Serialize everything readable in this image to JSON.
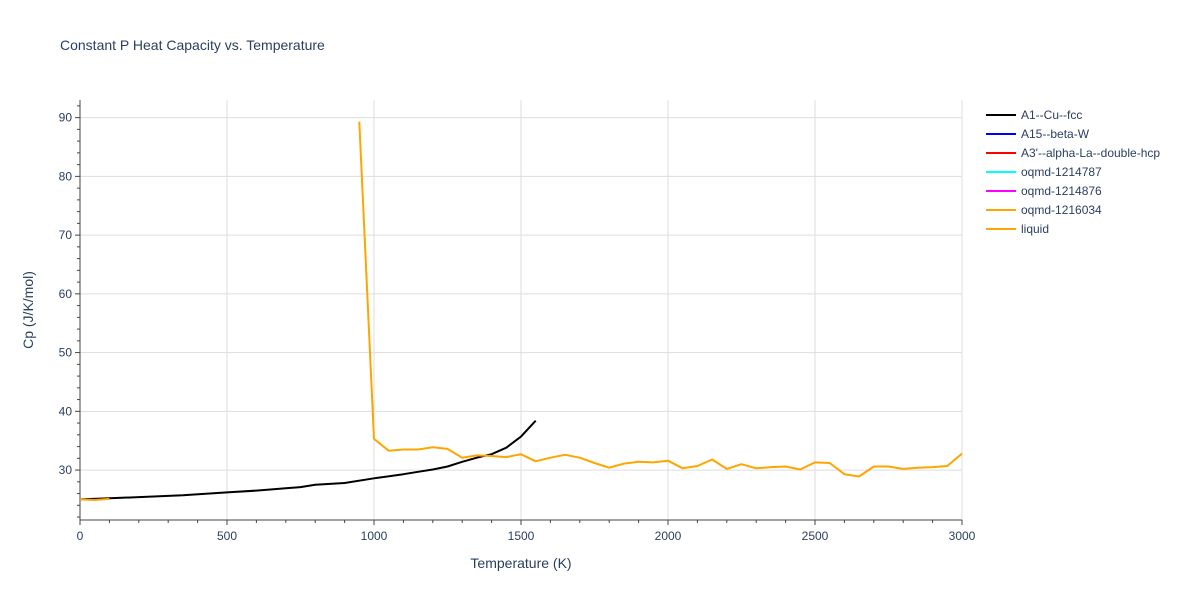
{
  "chart_data": {
    "type": "line",
    "title": "Constant P Heat Capacity vs. Temperature",
    "xlabel": "Temperature (K)",
    "ylabel": "Cp (J/K/mol)",
    "xlim": [
      0,
      3000
    ],
    "ylim": [
      21.5,
      93
    ],
    "xticks": [
      0,
      500,
      1000,
      1500,
      2000,
      2500,
      3000
    ],
    "xtick_labels": [
      "0",
      "500",
      "1000",
      "1500",
      "2000",
      "2500",
      "3000"
    ],
    "yticks": [
      30,
      40,
      50,
      60,
      70,
      80,
      90
    ],
    "ytick_labels": [
      "30",
      "40",
      "50",
      "60",
      "70",
      "80",
      "90"
    ],
    "grid": true,
    "legend_position": "right",
    "series": [
      {
        "name": "A1--Cu--fcc",
        "color": "#000000",
        "x": [
          0,
          100,
          200,
          350,
          500,
          600,
          700,
          750,
          800,
          900,
          1000,
          1100,
          1150,
          1200,
          1250,
          1300,
          1350,
          1400,
          1450,
          1500,
          1550
        ],
        "y": [
          25.0,
          25.2,
          25.4,
          25.7,
          26.2,
          26.5,
          26.9,
          27.1,
          27.5,
          27.8,
          28.6,
          29.3,
          29.7,
          30.1,
          30.6,
          31.4,
          32.1,
          32.7,
          33.8,
          35.7,
          38.4
        ]
      },
      {
        "name": "A15--beta-W",
        "color": "#0000ff",
        "x": [],
        "y": []
      },
      {
        "name": "A3'--alpha-La--double-hcp",
        "color": "#ff0000",
        "x": [],
        "y": []
      },
      {
        "name": "oqmd-1214787",
        "color": "#00ffff",
        "x": [],
        "y": []
      },
      {
        "name": "oqmd-1214876",
        "color": "#ff00ff",
        "x": [],
        "y": []
      },
      {
        "name": "oqmd-1216034",
        "color": "#ffa500",
        "x": [
          0,
          50,
          100
        ],
        "y": [
          25.0,
          24.9,
          25.1
        ]
      },
      {
        "name": "liquid",
        "color": "#ffa500",
        "x": [
          950,
          1000,
          1050,
          1100,
          1150,
          1200,
          1250,
          1300,
          1350,
          1400,
          1450,
          1500,
          1550,
          1600,
          1650,
          1700,
          1750,
          1800,
          1850,
          1900,
          1950,
          2000,
          2050,
          2100,
          2150,
          2200,
          2250,
          2300,
          2350,
          2400,
          2450,
          2500,
          2550,
          2600,
          2650,
          2700,
          2750,
          2800,
          2850,
          2900,
          2950,
          3000
        ],
        "y": [
          89.3,
          35.3,
          33.3,
          33.5,
          33.5,
          33.9,
          33.6,
          32.1,
          32.5,
          32.4,
          32.2,
          32.7,
          31.5,
          32.1,
          32.6,
          32.1,
          31.2,
          30.4,
          31.1,
          31.4,
          31.3,
          31.6,
          30.3,
          30.7,
          31.8,
          30.2,
          31.0,
          30.3,
          30.5,
          30.6,
          30.1,
          31.3,
          31.2,
          29.3,
          28.9,
          30.6,
          30.6,
          30.2,
          30.4,
          30.5,
          30.7,
          32.8
        ]
      }
    ]
  }
}
